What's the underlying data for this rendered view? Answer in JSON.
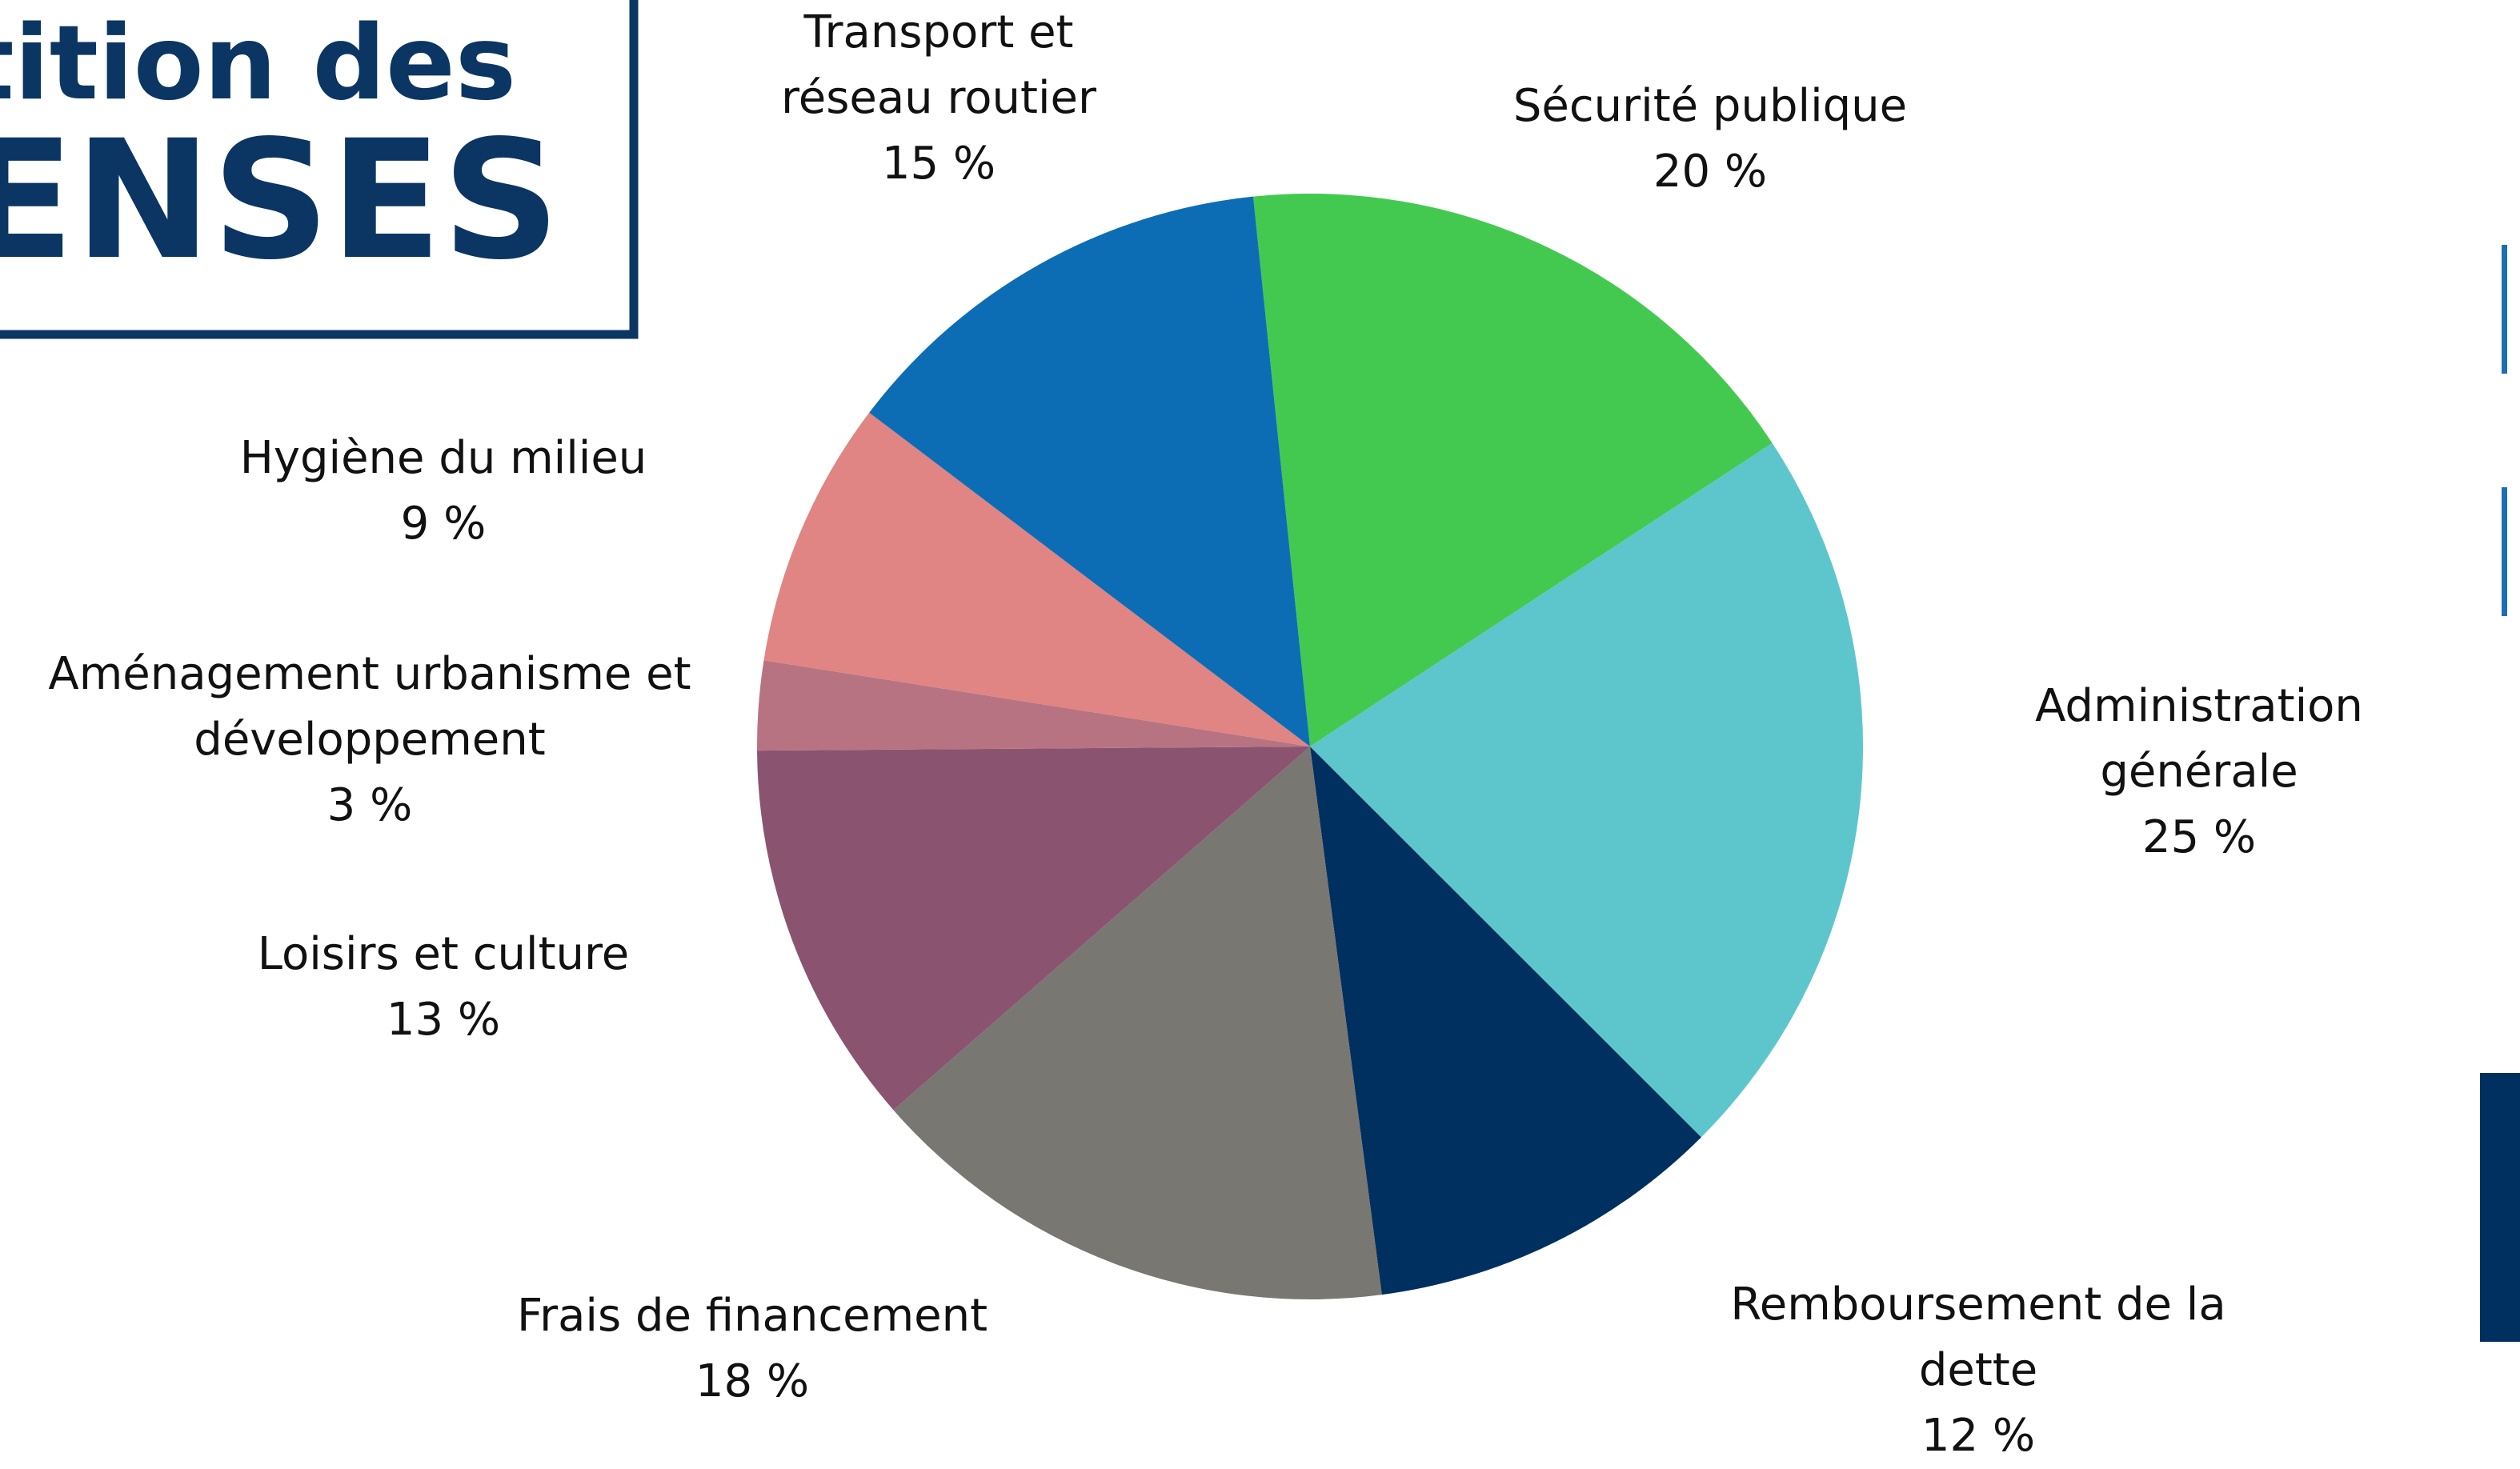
{
  "chart_data": {
    "type": "pie",
    "title": "artition des",
    "subtitle": "PENSES",
    "categories": [
      "Sécurité publique",
      "Administration générale",
      "Remboursement de la dette",
      "Frais de financement",
      "Loisirs et culture",
      "Aménagement urbanisme et\ndéveloppement",
      "Hygiène du milieu",
      "Transport et\nréseau routier"
    ],
    "values": [
      20,
      25,
      12,
      18,
      13,
      3,
      9,
      15
    ],
    "value_labels": [
      "20 %",
      "25 %",
      "12 %",
      "18 %",
      "13 %",
      "3 %",
      "9 %",
      "15 %"
    ],
    "colors": [
      "#43c94f",
      "#5dc6cc",
      "#00305f",
      "#797772",
      "#8a5470",
      "#b87383",
      "#e08484",
      "#0c6db5"
    ]
  }
}
